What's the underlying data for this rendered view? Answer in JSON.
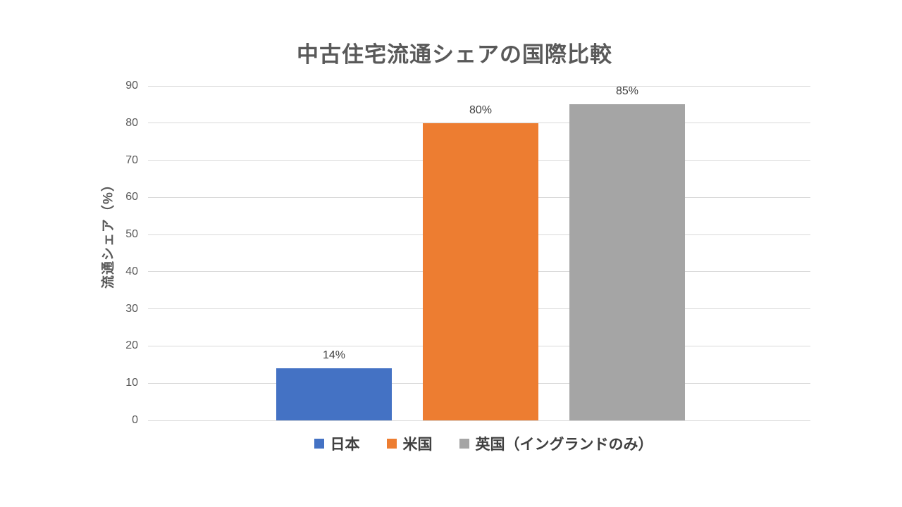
{
  "chart_data": {
    "type": "bar",
    "title": "中古住宅流通シェアの国際比較",
    "ylabel": "流通シェア（%）",
    "xlabel": "",
    "categories": [
      "日本",
      "米国",
      "英国（イングランドのみ）"
    ],
    "values": [
      14,
      80,
      85
    ],
    "data_labels": [
      "14%",
      "80%",
      "85%"
    ],
    "series_colors": [
      "#4472C4",
      "#ED7D31",
      "#A5A5A5"
    ],
    "ylim": [
      0,
      90
    ],
    "yticks": [
      0,
      10,
      20,
      30,
      40,
      50,
      60,
      70,
      80,
      90
    ],
    "grid": true,
    "gridline_color": "#D9D9D9",
    "legend_position": "bottom",
    "legend": [
      {
        "label": "日本",
        "color": "#4472C4"
      },
      {
        "label": "米国",
        "color": "#ED7D31"
      },
      {
        "label": "英国（イングランドのみ）",
        "color": "#A5A5A5"
      }
    ],
    "text_colors": {
      "title": "#595959",
      "axis_title": "#595959",
      "ticks": "#595959",
      "data_labels": "#404040",
      "legend": "#404040"
    }
  }
}
